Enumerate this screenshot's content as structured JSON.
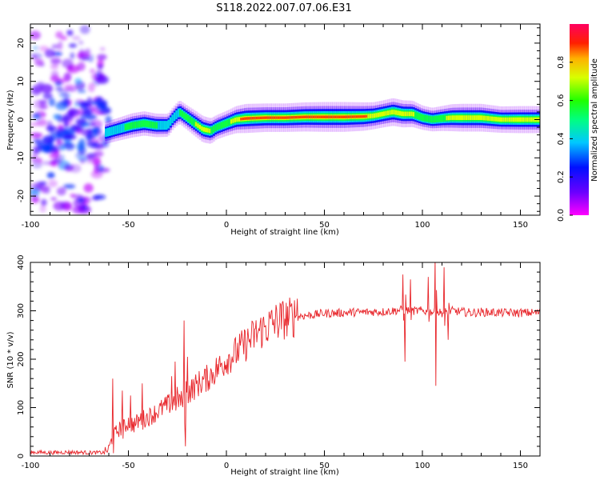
{
  "title": "S118.2022.007.07.06.E31",
  "chart_data": [
    {
      "type": "heatmap",
      "xlabel": "Height of straight line (km)",
      "ylabel": "Frequency (Hz)",
      "xlim": [
        -100,
        160
      ],
      "ylim": [
        -25,
        25
      ],
      "x_ticks": [
        -100,
        -50,
        0,
        50,
        100,
        150
      ],
      "y_ticks": [
        -20,
        -10,
        0,
        10,
        20
      ],
      "colorbar": {
        "label": "Normalized spectral amplitude",
        "range": [
          0,
          1
        ],
        "ticks": [
          "0.0",
          "0.2",
          "0.4",
          "0.6",
          "0.8"
        ],
        "palette": [
          "#ff00ff",
          "#3300ff",
          "#00ccff",
          "#00ff33",
          "#ccff00",
          "#ffcc00",
          "#ff3300",
          "#ff0066"
        ]
      },
      "ridge": {
        "x": [
          -62,
          -55,
          -48,
          -42,
          -36,
          -30,
          -27,
          -24,
          -20,
          -16,
          -12,
          -8,
          -5,
          0,
          5,
          10,
          20,
          30,
          40,
          50,
          60,
          70,
          75,
          80,
          85,
          90,
          95,
          100,
          105,
          110,
          115,
          120,
          130,
          140,
          150,
          160
        ],
        "y": [
          -3.5,
          -2.5,
          -1.5,
          -1,
          -1.5,
          -1.5,
          0.5,
          2,
          0.5,
          -1,
          -2.5,
          -3,
          -2,
          -1,
          0,
          0.3,
          0.5,
          0.5,
          0.7,
          0.7,
          0.7,
          0.8,
          1,
          1.5,
          2,
          1.5,
          1.5,
          0.5,
          0,
          0.3,
          0.5,
          0.5,
          0.5,
          0,
          0,
          0
        ],
        "amplitude": [
          0.45,
          0.5,
          0.6,
          0.6,
          0.55,
          0.5,
          0.45,
          0.55,
          0.6,
          0.7,
          0.75,
          0.7,
          0.6,
          0.65,
          0.8,
          0.95,
          0.9,
          0.9,
          0.95,
          1,
          1,
          0.9,
          0.8,
          0.8,
          0.85,
          0.8,
          0.75,
          0.6,
          0.55,
          0.65,
          0.8,
          0.85,
          0.85,
          0.75,
          0.8,
          0.8
        ]
      }
    },
    {
      "type": "line",
      "xlabel": "Height of straight line (km)",
      "ylabel": "SNR (10 * v/v)",
      "xlim": [
        -100,
        160
      ],
      "ylim": [
        0,
        400
      ],
      "x_ticks": [
        -100,
        -50,
        0,
        50,
        100,
        150
      ],
      "y_ticks": [
        0,
        100,
        200,
        300,
        400
      ],
      "color": "#e8262b",
      "x": [
        -100,
        -90,
        -80,
        -70,
        -62,
        -60,
        -58,
        -55,
        -52,
        -50,
        -47,
        -44,
        -40,
        -36,
        -32,
        -28,
        -25,
        -22,
        -20,
        -17,
        -14,
        -10,
        -6,
        -2,
        0,
        4,
        8,
        12,
        16,
        20,
        24,
        28,
        32,
        36,
        40,
        45,
        50,
        55,
        60,
        65,
        70,
        75,
        80,
        85,
        90,
        95,
        100,
        105,
        110,
        115,
        120,
        125,
        130,
        135,
        140,
        145,
        150,
        155,
        160
      ],
      "y": [
        8,
        7,
        8,
        7,
        7,
        15,
        40,
        55,
        60,
        70,
        65,
        75,
        80,
        90,
        100,
        110,
        120,
        110,
        130,
        140,
        150,
        160,
        175,
        190,
        200,
        210,
        225,
        240,
        255,
        265,
        275,
        282,
        285,
        290,
        290,
        292,
        295,
        295,
        296,
        297,
        297,
        298,
        298,
        300,
        302,
        300,
        300,
        298,
        296,
        300,
        298,
        296,
        297,
        297,
        296,
        296,
        296,
        296,
        296
      ],
      "spikes": [
        {
          "x": -58,
          "y": 160
        },
        {
          "x": -53,
          "y": 135
        },
        {
          "x": -49,
          "y": 125
        },
        {
          "x": -43,
          "y": 150
        },
        {
          "x": -28,
          "y": 165
        },
        {
          "x": -26,
          "y": 195
        },
        {
          "x": -21.5,
          "y": 280
        },
        {
          "x": -20,
          "y": 205
        },
        {
          "x": -21,
          "y": 20
        },
        {
          "x": 36,
          "y": 325
        },
        {
          "x": 90,
          "y": 375
        },
        {
          "x": 91,
          "y": 195
        },
        {
          "x": 94,
          "y": 365
        },
        {
          "x": 103,
          "y": 370
        },
        {
          "x": 106.5,
          "y": 410
        },
        {
          "x": 107,
          "y": 145
        },
        {
          "x": 111,
          "y": 390
        },
        {
          "x": 113,
          "y": 240
        }
      ]
    }
  ]
}
